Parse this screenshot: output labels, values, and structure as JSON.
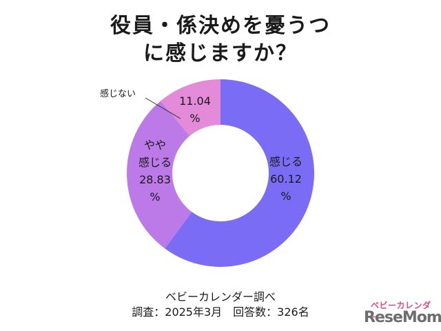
{
  "title_lines": [
    "役員・係決めを憂うつ",
    "に感じますか？"
  ],
  "chart_data": {
    "type": "pie",
    "donut": true,
    "slices": [
      {
        "name": "感じる",
        "value": 60.12,
        "color": "#7b6cf6",
        "label_lines": [
          "感じる",
          "60.12",
          "%"
        ]
      },
      {
        "name": "やや感じる",
        "value": 28.83,
        "color": "#bc7ae8",
        "label_lines": [
          "やや",
          "感じる",
          "28.83",
          "%"
        ]
      },
      {
        "name": "感じない",
        "value": 11.04,
        "color": "#e38ad8",
        "label_lines": [
          "11.04",
          "%"
        ],
        "callout": "感じない"
      }
    ]
  },
  "source": {
    "line1": "ベビーカレンダー調べ",
    "line2": "調査：2025年3月　回答数：326名"
  },
  "logo": {
    "top": "ベビーカレンダー",
    "main": "ReseMom"
  }
}
